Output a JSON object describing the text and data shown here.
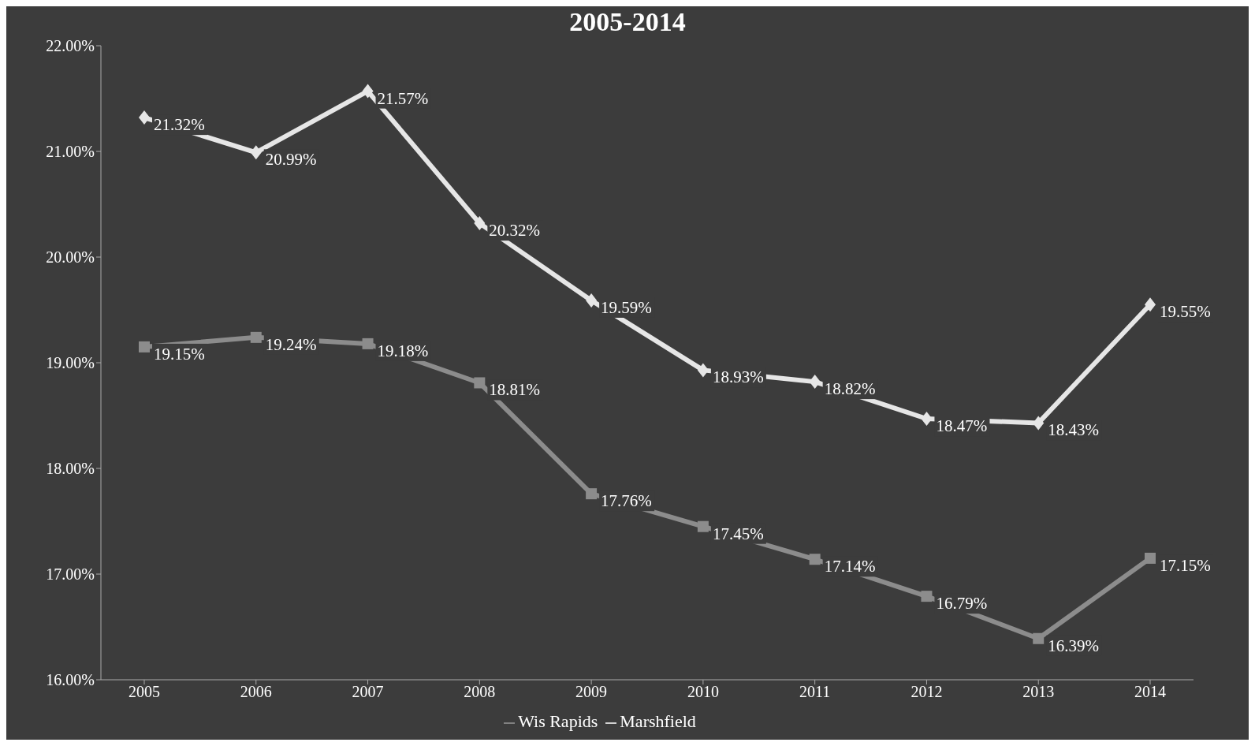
{
  "chart_data": {
    "type": "line",
    "title": "2005-2014",
    "categories": [
      "2005",
      "2006",
      "2007",
      "2008",
      "2009",
      "2010",
      "2011",
      "2012",
      "2013",
      "2014"
    ],
    "series": [
      {
        "name": "Wis Rapids",
        "color": "#8c8c8c",
        "marker": "square",
        "values": [
          19.15,
          19.24,
          19.18,
          18.81,
          17.76,
          17.45,
          17.14,
          16.79,
          16.39,
          17.15
        ],
        "value_labels": [
          "19.15%",
          "19.24%",
          "19.18%",
          "18.81%",
          "17.76%",
          "17.45%",
          "17.14%",
          "16.79%",
          "16.39%",
          "17.15%"
        ]
      },
      {
        "name": "Marshfield",
        "color": "#e6e6e6",
        "marker": "diamond",
        "values": [
          21.32,
          20.99,
          21.57,
          20.32,
          19.59,
          18.93,
          18.82,
          18.47,
          18.43,
          19.55
        ],
        "value_labels": [
          "21.32%",
          "20.99%",
          "21.57%",
          "20.32%",
          "19.59%",
          "18.93%",
          "18.82%",
          "18.47%",
          "18.43%",
          "19.55%"
        ]
      }
    ],
    "ylim": [
      16,
      22
    ],
    "yticks": [
      {
        "value": 16,
        "label": "16.00%"
      },
      {
        "value": 17,
        "label": "17.00%"
      },
      {
        "value": 18,
        "label": "18.00%"
      },
      {
        "value": 19,
        "label": "19.00%"
      },
      {
        "value": 20,
        "label": "20.00%"
      },
      {
        "value": 21,
        "label": "21.00%"
      },
      {
        "value": 22,
        "label": "22.00%"
      }
    ],
    "grid": false,
    "legend": "bottom",
    "line_style": "solid"
  }
}
